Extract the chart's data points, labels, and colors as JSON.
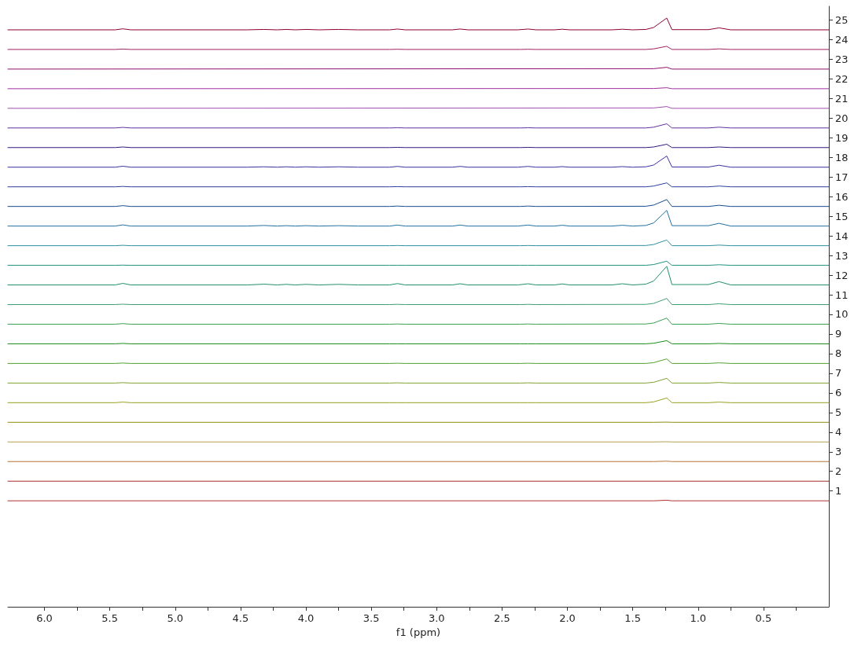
{
  "chart_data": {
    "type": "line",
    "xlabel": "f1 (ppm)",
    "xlim": [
      6.28,
      0
    ],
    "ylim": [
      -4.9,
      25.7
    ],
    "xticks": [
      {
        "value": 6,
        "label": "6.0"
      },
      {
        "value": 5.75,
        "label": null
      },
      {
        "value": 5.5,
        "label": "5.5"
      },
      {
        "value": 5.25,
        "label": null
      },
      {
        "value": 5,
        "label": "5.0"
      },
      {
        "value": 4.75,
        "label": null
      },
      {
        "value": 4.5,
        "label": "4.5"
      },
      {
        "value": 4.25,
        "label": null
      },
      {
        "value": 4,
        "label": "4.0"
      },
      {
        "value": 3.75,
        "label": null
      },
      {
        "value": 3.5,
        "label": "3.5"
      },
      {
        "value": 3.25,
        "label": null
      },
      {
        "value": 3,
        "label": "3.0"
      },
      {
        "value": 2.75,
        "label": null
      },
      {
        "value": 2.5,
        "label": "2.5"
      },
      {
        "value": 2.25,
        "label": null
      },
      {
        "value": 2,
        "label": "2.0"
      },
      {
        "value": 1.75,
        "label": null
      },
      {
        "value": 1.5,
        "label": "1.5"
      },
      {
        "value": 1.25,
        "label": null
      },
      {
        "value": 1,
        "label": "1.0"
      },
      {
        "value": 0.75,
        "label": null
      },
      {
        "value": 0.5,
        "label": "0.5"
      },
      {
        "value": 0.25,
        "label": null
      }
    ],
    "yticks": [
      1,
      2,
      3,
      4,
      5,
      6,
      7,
      8,
      9,
      10,
      11,
      12,
      13,
      14,
      15,
      16,
      17,
      18,
      19,
      20,
      21,
      22,
      23,
      24,
      25
    ],
    "grid": false,
    "series": [
      {
        "color": "#b03030",
        "x": [
          6.28,
          1.34,
          1.24,
          1.2,
          0
        ],
        "values": [
          0.5,
          0.5,
          0.53,
          0.5,
          0.5
        ]
      },
      {
        "color": "#a52a2a",
        "x": [
          6.28,
          0
        ],
        "values": [
          1.5,
          1.5
        ]
      },
      {
        "color": "#b87333",
        "x": [
          6.28,
          1.34,
          1.24,
          1.2,
          0
        ],
        "values": [
          2.5,
          2.5,
          2.52,
          2.5,
          2.5
        ]
      },
      {
        "color": "#b8a050",
        "x": [
          6.28,
          1.34,
          1.24,
          1.2,
          0
        ],
        "values": [
          3.5,
          3.5,
          3.51,
          3.5,
          3.5
        ]
      },
      {
        "color": "#8b8b10",
        "x": [
          6.28,
          1.34,
          1.24,
          1.2,
          0
        ],
        "values": [
          4.5,
          4.5,
          4.51,
          4.5,
          4.5
        ]
      },
      {
        "color": "#9aa020",
        "x": [
          6.28,
          5.46,
          5.4,
          5.34,
          3.36,
          3.3,
          3.24,
          2.36,
          2.3,
          2.24,
          1.4,
          1.34,
          1.24,
          1.2,
          0.92,
          0.84,
          0.75,
          0
        ],
        "values": [
          5.5,
          5.5,
          5.53,
          5.5,
          5.5,
          5.5,
          5.5,
          5.5,
          5.5,
          5.5,
          5.5,
          5.54,
          5.74,
          5.5,
          5.5,
          5.53,
          5.5,
          5.5
        ]
      },
      {
        "color": "#7fa030",
        "x": [
          6.28,
          5.46,
          5.4,
          5.34,
          3.36,
          3.3,
          3.24,
          2.36,
          2.3,
          2.24,
          1.4,
          1.34,
          1.24,
          1.2,
          0.92,
          0.84,
          0.75,
          0
        ],
        "values": [
          6.5,
          6.5,
          6.52,
          6.5,
          6.5,
          6.51,
          6.5,
          6.5,
          6.51,
          6.5,
          6.5,
          6.54,
          6.74,
          6.5,
          6.5,
          6.53,
          6.5,
          6.5
        ]
      },
      {
        "color": "#55a030",
        "x": [
          6.28,
          5.46,
          5.4,
          5.34,
          3.36,
          3.3,
          3.24,
          2.36,
          2.3,
          2.24,
          1.4,
          1.34,
          1.24,
          1.2,
          0.92,
          0.84,
          0.75,
          0
        ],
        "values": [
          7.5,
          7.5,
          7.52,
          7.5,
          7.5,
          7.51,
          7.5,
          7.5,
          7.51,
          7.5,
          7.5,
          7.54,
          7.73,
          7.5,
          7.5,
          7.53,
          7.5,
          7.5
        ]
      },
      {
        "color": "#1a8c1a",
        "x": [
          6.28,
          5.46,
          5.4,
          5.34,
          3.36,
          3.3,
          3.24,
          2.36,
          2.3,
          2.24,
          1.4,
          1.34,
          1.24,
          1.2,
          0.92,
          0.84,
          0.75,
          0
        ],
        "values": [
          8.5,
          8.5,
          8.52,
          8.5,
          8.5,
          8.5,
          8.5,
          8.5,
          8.5,
          8.5,
          8.5,
          8.53,
          8.66,
          8.5,
          8.5,
          8.52,
          8.5,
          8.5
        ]
      },
      {
        "color": "#3aa050",
        "x": [
          6.28,
          5.46,
          5.4,
          5.34,
          3.36,
          3.3,
          3.24,
          2.36,
          2.3,
          2.24,
          1.4,
          1.34,
          1.24,
          1.2,
          0.92,
          0.84,
          0.75,
          0
        ],
        "values": [
          9.5,
          9.5,
          9.53,
          9.5,
          9.5,
          9.51,
          9.5,
          9.5,
          9.51,
          9.5,
          9.51,
          9.56,
          9.81,
          9.5,
          9.5,
          9.54,
          9.5,
          9.5
        ]
      },
      {
        "color": "#40a070",
        "x": [
          6.28,
          5.46,
          5.4,
          5.34,
          3.36,
          3.3,
          3.24,
          2.36,
          2.3,
          2.24,
          1.4,
          1.34,
          1.24,
          1.2,
          0.92,
          0.84,
          0.75,
          0
        ],
        "values": [
          10.5,
          10.5,
          10.52,
          10.5,
          10.5,
          10.51,
          10.5,
          10.5,
          10.51,
          10.5,
          10.51,
          10.56,
          10.81,
          10.5,
          10.5,
          10.54,
          10.5,
          10.5
        ]
      },
      {
        "color": "#20906a",
        "x": [
          6.28,
          5.46,
          5.4,
          5.34,
          4.45,
          4.32,
          4.22,
          4.15,
          4.08,
          4,
          3.9,
          3.75,
          3.6,
          3.36,
          3.3,
          3.24,
          2.88,
          2.82,
          2.76,
          2.38,
          2.3,
          2.24,
          2.1,
          2.04,
          1.98,
          1.66,
          1.58,
          1.5,
          1.4,
          1.34,
          1.24,
          1.2,
          0.92,
          0.84,
          0.75,
          0
        ],
        "values": [
          11.5,
          11.5,
          11.58,
          11.5,
          11.5,
          11.54,
          11.5,
          11.53,
          11.5,
          11.53,
          11.5,
          11.53,
          11.5,
          11.5,
          11.57,
          11.5,
          11.5,
          11.56,
          11.5,
          11.5,
          11.56,
          11.5,
          11.5,
          11.55,
          11.5,
          11.5,
          11.56,
          11.5,
          11.54,
          11.7,
          12.45,
          11.52,
          11.52,
          11.67,
          11.5,
          11.5
        ]
      },
      {
        "color": "#209080",
        "x": [
          6.28,
          5.46,
          5.4,
          5.34,
          3.36,
          3.3,
          3.24,
          2.36,
          2.3,
          2.24,
          1.4,
          1.34,
          1.24,
          1.2,
          0.92,
          0.84,
          0.75,
          0
        ],
        "values": [
          12.5,
          12.5,
          12.51,
          12.5,
          12.5,
          12.5,
          12.5,
          12.5,
          12.5,
          12.5,
          12.5,
          12.54,
          12.71,
          12.5,
          12.5,
          12.53,
          12.5,
          12.5
        ]
      },
      {
        "color": "#3090a0",
        "x": [
          6.28,
          5.46,
          5.4,
          5.34,
          3.36,
          3.3,
          3.24,
          2.36,
          2.3,
          2.24,
          1.4,
          1.34,
          1.24,
          1.2,
          0.92,
          0.84,
          0.75,
          0
        ],
        "values": [
          13.5,
          13.5,
          13.52,
          13.5,
          13.5,
          13.51,
          13.5,
          13.5,
          13.51,
          13.5,
          13.51,
          13.56,
          13.79,
          13.5,
          13.5,
          13.53,
          13.5,
          13.5
        ]
      },
      {
        "color": "#2070a0",
        "x": [
          6.28,
          5.46,
          5.4,
          5.34,
          4.45,
          4.32,
          4.22,
          4.15,
          4.08,
          4,
          3.9,
          3.75,
          3.6,
          3.36,
          3.3,
          3.24,
          2.88,
          2.82,
          2.76,
          2.38,
          2.3,
          2.24,
          2.1,
          2.04,
          1.98,
          1.66,
          1.58,
          1.5,
          1.4,
          1.34,
          1.24,
          1.2,
          0.92,
          0.84,
          0.75,
          0
        ],
        "values": [
          14.5,
          14.5,
          14.56,
          14.5,
          14.5,
          14.53,
          14.5,
          14.52,
          14.5,
          14.52,
          14.5,
          14.52,
          14.5,
          14.5,
          14.55,
          14.5,
          14.5,
          14.55,
          14.5,
          14.5,
          14.55,
          14.5,
          14.5,
          14.54,
          14.5,
          14.5,
          14.54,
          14.5,
          14.53,
          14.66,
          15.3,
          14.52,
          14.52,
          14.64,
          14.5,
          14.5
        ]
      },
      {
        "color": "#1a4a90",
        "x": [
          6.28,
          5.46,
          5.4,
          5.34,
          3.36,
          3.3,
          3.24,
          2.36,
          2.3,
          2.24,
          1.4,
          1.34,
          1.24,
          1.2,
          0.92,
          0.84,
          0.75,
          0
        ],
        "values": [
          15.5,
          15.5,
          15.54,
          15.5,
          15.5,
          15.52,
          15.5,
          15.5,
          15.52,
          15.5,
          15.51,
          15.57,
          15.85,
          15.5,
          15.5,
          15.56,
          15.5,
          15.5
        ]
      },
      {
        "color": "#2a40a0",
        "x": [
          6.28,
          5.46,
          5.4,
          5.34,
          3.36,
          3.3,
          3.24,
          2.36,
          2.3,
          2.24,
          1.4,
          1.34,
          1.24,
          1.2,
          0.92,
          0.84,
          0.75,
          0
        ],
        "values": [
          16.5,
          16.5,
          16.52,
          16.5,
          16.5,
          16.51,
          16.5,
          16.5,
          16.51,
          16.5,
          16.5,
          16.54,
          16.7,
          16.5,
          16.5,
          16.54,
          16.5,
          16.5
        ]
      },
      {
        "color": "#3a30a0",
        "x": [
          6.28,
          5.46,
          5.4,
          5.34,
          4.45,
          4.32,
          4.22,
          4.15,
          4.08,
          4,
          3.9,
          3.75,
          3.6,
          3.36,
          3.3,
          3.24,
          2.88,
          2.82,
          2.76,
          2.38,
          2.3,
          2.24,
          2.1,
          2.04,
          1.98,
          1.66,
          1.58,
          1.5,
          1.4,
          1.34,
          1.24,
          1.2,
          0.92,
          0.84,
          0.75,
          0
        ],
        "values": [
          17.5,
          17.5,
          17.55,
          17.5,
          17.5,
          17.52,
          17.5,
          17.52,
          17.5,
          17.52,
          17.5,
          17.52,
          17.5,
          17.5,
          17.54,
          17.5,
          17.5,
          17.54,
          17.5,
          17.5,
          17.54,
          17.5,
          17.5,
          17.53,
          17.5,
          17.5,
          17.53,
          17.5,
          17.52,
          17.61,
          18.07,
          17.51,
          17.51,
          17.6,
          17.5,
          17.5
        ]
      },
      {
        "color": "#301880",
        "x": [
          6.28,
          5.46,
          5.4,
          5.34,
          3.36,
          3.3,
          3.24,
          2.36,
          2.3,
          2.24,
          1.4,
          1.34,
          1.24,
          1.2,
          0.92,
          0.84,
          0.75,
          0
        ],
        "values": [
          18.5,
          18.5,
          18.53,
          18.5,
          18.5,
          18.51,
          18.5,
          18.5,
          18.51,
          18.5,
          18.5,
          18.53,
          18.67,
          18.5,
          18.5,
          18.53,
          18.5,
          18.5
        ]
      },
      {
        "color": "#6030a0",
        "x": [
          6.28,
          5.46,
          5.4,
          5.34,
          3.36,
          3.3,
          3.24,
          2.36,
          2.3,
          2.24,
          1.4,
          1.34,
          1.24,
          1.2,
          0.92,
          0.84,
          0.75,
          0
        ],
        "values": [
          19.5,
          19.5,
          19.53,
          19.5,
          19.5,
          19.51,
          19.5,
          19.5,
          19.51,
          19.5,
          19.5,
          19.54,
          19.71,
          19.5,
          19.5,
          19.54,
          19.5,
          19.5
        ]
      },
      {
        "color": "#a050b0",
        "x": [
          6.28,
          1.34,
          1.24,
          1.2,
          0
        ],
        "values": [
          20.5,
          20.52,
          20.59,
          20.5,
          20.5
        ]
      },
      {
        "color": "#a030a0",
        "x": [
          6.28,
          1.34,
          1.24,
          1.2,
          0
        ],
        "values": [
          21.5,
          21.51,
          21.55,
          21.5,
          21.5
        ]
      },
      {
        "color": "#901070",
        "x": [
          6.28,
          1.34,
          1.24,
          1.2,
          0
        ],
        "values": [
          22.5,
          22.52,
          22.59,
          22.5,
          22.5
        ]
      },
      {
        "color": "#a02060",
        "x": [
          6.28,
          5.46,
          5.4,
          5.34,
          3.36,
          3.3,
          3.24,
          2.36,
          2.3,
          2.24,
          1.4,
          1.34,
          1.24,
          1.2,
          0.92,
          0.84,
          0.75,
          0
        ],
        "values": [
          23.5,
          23.5,
          23.52,
          23.5,
          23.5,
          23.51,
          23.5,
          23.5,
          23.51,
          23.5,
          23.5,
          23.53,
          23.66,
          23.5,
          23.5,
          23.53,
          23.5,
          23.5
        ]
      },
      {
        "color": "#900030",
        "x": [
          6.28,
          5.46,
          5.4,
          5.34,
          4.45,
          4.32,
          4.22,
          4.15,
          4.08,
          4,
          3.9,
          3.75,
          3.6,
          3.36,
          3.3,
          3.24,
          2.88,
          2.82,
          2.76,
          2.38,
          2.3,
          2.24,
          2.1,
          2.04,
          1.98,
          1.66,
          1.58,
          1.5,
          1.4,
          1.34,
          1.24,
          1.2,
          0.92,
          0.84,
          0.75,
          0
        ],
        "values": [
          24.5,
          24.5,
          24.55,
          24.5,
          24.5,
          24.52,
          24.5,
          24.52,
          24.5,
          24.52,
          24.5,
          24.52,
          24.5,
          24.5,
          24.54,
          24.5,
          24.5,
          24.54,
          24.5,
          24.5,
          24.54,
          24.5,
          24.5,
          24.53,
          24.5,
          24.5,
          24.53,
          24.5,
          24.52,
          24.62,
          25.1,
          24.51,
          24.51,
          24.6,
          24.5,
          24.5
        ]
      }
    ]
  }
}
